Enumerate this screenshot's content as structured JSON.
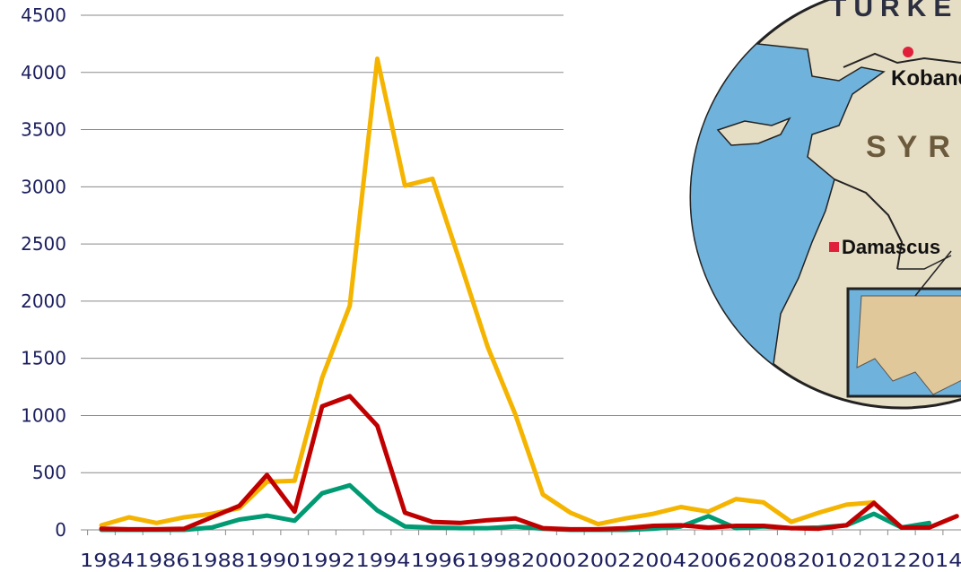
{
  "chart_data": {
    "type": "line",
    "title": "",
    "xlabel": "",
    "ylabel": "",
    "ylim": [
      0,
      4500
    ],
    "yticks": [
      0,
      500,
      1000,
      1500,
      2000,
      2500,
      3000,
      3500,
      4000,
      4500
    ],
    "xtick_labels": [
      "1984",
      "1986",
      "1988",
      "1990",
      "1992",
      "1994",
      "1996",
      "1998",
      "2000",
      "2002",
      "2004",
      "2006",
      "2008",
      "2010",
      "2012",
      "2014"
    ],
    "grid": true,
    "legend": "none",
    "x": [
      1984,
      1985,
      1986,
      1987,
      1988,
      1989,
      1990,
      1991,
      1992,
      1993,
      1994,
      1995,
      1996,
      1997,
      1998,
      1999,
      2000,
      2001,
      2002,
      2003,
      2004,
      2005,
      2006,
      2007,
      2008,
      2009,
      2010,
      2011,
      2012,
      2013,
      2014,
      2015
    ],
    "series": [
      {
        "color": "#f5b400",
        "values": [
          40,
          110,
          60,
          110,
          140,
          190,
          420,
          430,
          1330,
          1960,
          4120,
          3010,
          3070,
          2340,
          1600,
          1010,
          310,
          150,
          50,
          100,
          140,
          200,
          160,
          270,
          240,
          70,
          150,
          220,
          240,
          null,
          null,
          null
        ]
      },
      {
        "color": "#c00000",
        "values": [
          10,
          5,
          5,
          10,
          110,
          210,
          480,
          160,
          1080,
          1170,
          910,
          150,
          70,
          60,
          85,
          100,
          15,
          5,
          5,
          15,
          35,
          40,
          20,
          35,
          35,
          15,
          10,
          40,
          235,
          20,
          20,
          120
        ]
      },
      {
        "color": "#009a73",
        "values": [
          0,
          0,
          0,
          0,
          20,
          90,
          125,
          80,
          320,
          390,
          170,
          30,
          20,
          15,
          15,
          30,
          10,
          0,
          0,
          0,
          10,
          30,
          120,
          15,
          30,
          15,
          20,
          40,
          140,
          20,
          60,
          null
        ]
      }
    ]
  },
  "map": {
    "labels": {
      "turkey": "TURKE",
      "kobane": "Kobane",
      "syria": "SYR",
      "damascus": "Damascus"
    },
    "colors": {
      "land": "#e6ddc5",
      "sea": "#6fb3dc",
      "border": "#222222"
    }
  }
}
